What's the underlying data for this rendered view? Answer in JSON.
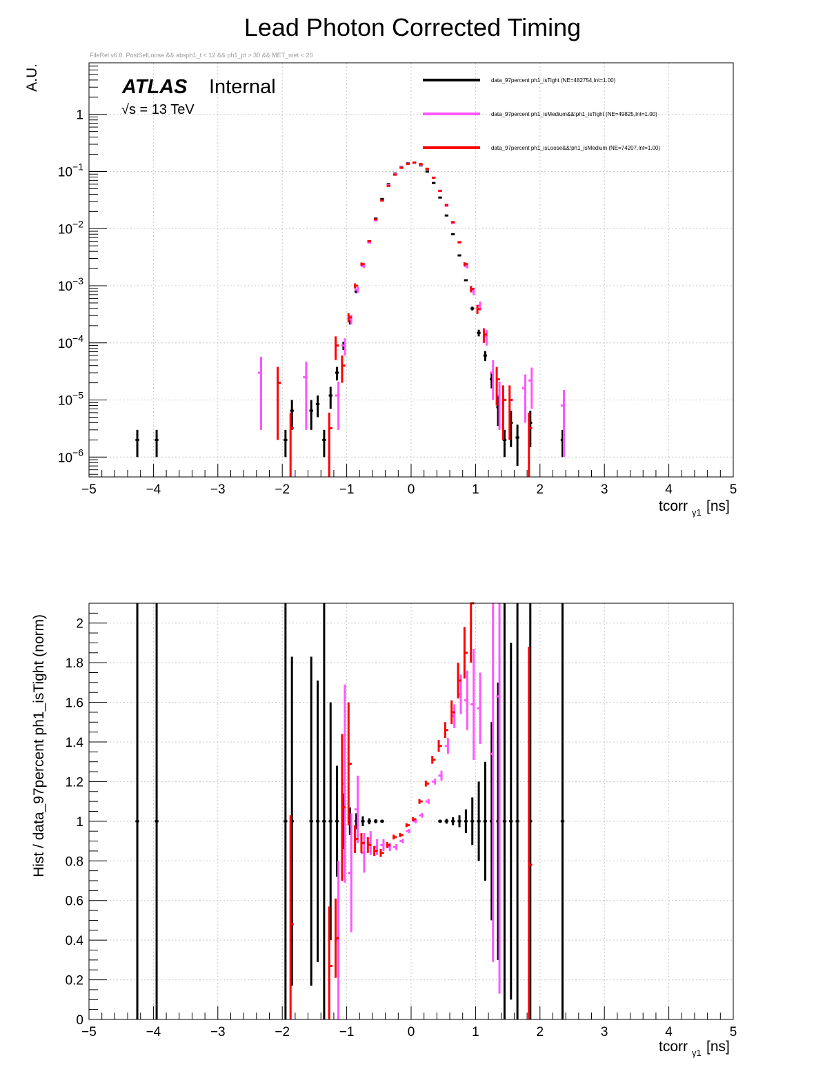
{
  "chart_data": [
    {
      "type": "scatter",
      "title": "Lead Photon Corrected Timing",
      "subtitle": "FileRel v6.0. PostSelLoose &&  absph1_t < 12 && ph1_pt > 30 && MET_met < 20",
      "atlas_label": "ATLAS",
      "atlas_status": "Internal",
      "energy_label": "√s = 13 TeV",
      "xlabel_main": "tcorr",
      "xlabel_sub": "γ1",
      "xlabel_unit": "[ns]",
      "ylabel": "A.U.",
      "yscale": "log",
      "xlim": [
        -5,
        5
      ],
      "ylim": [
        4.5e-07,
        8
      ],
      "grid": true,
      "legend_position": "top-right",
      "xticks": [
        "−5",
        "−4",
        "−3",
        "−2",
        "−1",
        "0",
        "1",
        "2",
        "3",
        "4",
        "5"
      ],
      "yticks": [
        {
          "value": 1,
          "base": "1",
          "exp": ""
        },
        {
          "value": 0.1,
          "base": "10",
          "exp": "−1"
        },
        {
          "value": 0.01,
          "base": "10",
          "exp": "−2"
        },
        {
          "value": 0.001,
          "base": "10",
          "exp": "−3"
        },
        {
          "value": 0.0001,
          "base": "10",
          "exp": "−4"
        },
        {
          "value": 1e-05,
          "base": "10",
          "exp": "−5"
        },
        {
          "value": 1e-06,
          "base": "10",
          "exp": "−6"
        }
      ],
      "series": [
        {
          "name": "data_97percent  ph1_isTight (NE=482754,Int=1.00)",
          "color": "#000000",
          "points": [
            [
              -4.25,
              2e-06,
              1e-06
            ],
            [
              -3.95,
              2e-06,
              1e-06
            ],
            [
              -1.95,
              2e-06,
              1e-06
            ],
            [
              -1.85,
              6.5e-06,
              3.5e-06
            ],
            [
              -1.55,
              6.5e-06,
              3.5e-06
            ],
            [
              -1.45,
              8.5e-06,
              3.5e-06
            ],
            [
              -1.35,
              2e-06,
              1e-06
            ],
            [
              -1.25,
              1.2e-05,
              5e-06
            ],
            [
              -1.15,
              3e-05,
              8e-06
            ],
            [
              -1.05,
              9e-05,
              1.5e-05
            ],
            [
              -0.95,
              0.00024,
              3e-05
            ],
            [
              -0.85,
              0.0008,
              6e-05
            ],
            [
              -0.75,
              0.0023,
              0.0001
            ],
            [
              -0.65,
              0.006,
              0.0002
            ],
            [
              -0.55,
              0.015,
              0.0003
            ],
            [
              -0.45,
              0.033,
              0.0005
            ],
            [
              -0.35,
              0.06,
              0.0006
            ],
            [
              -0.25,
              0.092,
              0.0008
            ],
            [
              -0.15,
              0.12,
              0.0009
            ],
            [
              -0.05,
              0.14,
              0.001
            ],
            [
              0.05,
              0.142,
              0.001
            ],
            [
              0.15,
              0.128,
              0.0009
            ],
            [
              0.25,
              0.1,
              0.0008
            ],
            [
              0.35,
              0.063,
              0.0006
            ],
            [
              0.45,
              0.035,
              0.0005
            ],
            [
              0.55,
              0.017,
              0.0003
            ],
            [
              0.65,
              0.008,
              0.0002
            ],
            [
              0.75,
              0.0034,
              0.0001
            ],
            [
              0.85,
              0.00125,
              6e-05
            ],
            [
              0.95,
              0.0004,
              3e-05
            ],
            [
              1.05,
              0.00015,
              2e-05
            ],
            [
              1.15,
              6e-05,
              1.2e-05
            ],
            [
              1.25,
              2.3e-05,
              7e-06
            ],
            [
              1.35,
              7.5e-06,
              4e-06
            ],
            [
              1.45,
              2e-06,
              1e-06
            ],
            [
              1.55,
              4e-06,
              2.5e-06
            ],
            [
              1.65,
              2.2e-06,
              1.5e-06
            ],
            [
              1.85,
              4e-06,
              2.5e-06
            ],
            [
              2.35,
              2e-06,
              1e-06
            ]
          ]
        },
        {
          "name": "data_97percent  ph1_isMedium&&!ph1_isTight (NE=49825,Int=1.00)",
          "color": "#ff55ff",
          "points": [
            [
              -2.35,
              3e-05,
              2.7e-05
            ],
            [
              -1.65,
              2.5e-05,
              2.2e-05
            ],
            [
              -1.15,
              1.2e-05,
              9e-06
            ],
            [
              -1.05,
              9e-05,
              3e-05
            ],
            [
              -0.95,
              0.00026,
              5e-05
            ],
            [
              -0.85,
              0.00085,
              0.0001
            ],
            [
              -0.75,
              0.0022,
              0.00015
            ],
            [
              -0.65,
              0.0057,
              0.0003
            ],
            [
              -0.55,
              0.014,
              0.0005
            ],
            [
              -0.45,
              0.031,
              0.0008
            ],
            [
              -0.35,
              0.058,
              0.001
            ],
            [
              -0.25,
              0.09,
              0.0013
            ],
            [
              -0.15,
              0.118,
              0.0015
            ],
            [
              -0.05,
              0.138,
              0.0016
            ],
            [
              0.05,
              0.143,
              0.0016
            ],
            [
              0.15,
              0.132,
              0.0015
            ],
            [
              0.25,
              0.11,
              0.0014
            ],
            [
              0.35,
              0.078,
              0.0012
            ],
            [
              0.45,
              0.046,
              0.0009
            ],
            [
              0.55,
              0.025,
              0.0007
            ],
            [
              0.65,
              0.0125,
              0.0005
            ],
            [
              0.75,
              0.0057,
              0.0003
            ],
            [
              0.85,
              0.0022,
              0.0002
            ],
            [
              0.95,
              0.0008,
              0.00012
            ],
            [
              1.05,
              0.00045,
              8e-05
            ],
            [
              1.15,
              0.00013,
              4e-05
            ],
            [
              1.25,
              3e-05,
              2e-05
            ],
            [
              1.35,
              1.2e-05,
              9e-06
            ],
            [
              1.75,
              1.6e-05,
              1.2e-05
            ],
            [
              1.85,
              2.2e-05,
              1.5e-05
            ],
            [
              2.35,
              8e-06,
              7e-06
            ]
          ]
        },
        {
          "name": "data_97percent  ph1_isLoose&&!ph1_isMedium (NE=74207,Int=1.00)",
          "color": "#ff0000",
          "points": [
            [
              -2.05,
              2e-05,
              1.8e-05
            ],
            [
              -1.85,
              3.2e-06,
              2.8e-06
            ],
            [
              -1.25,
              3.2e-06,
              2.8e-06
            ],
            [
              -1.15,
              9e-05,
              4e-05
            ],
            [
              -1.05,
              4e-05,
              2e-05
            ],
            [
              -0.95,
              0.00028,
              5e-05
            ],
            [
              -0.85,
              0.001,
              0.0001
            ],
            [
              -0.75,
              0.0024,
              0.00015
            ],
            [
              -0.65,
              0.006,
              0.00025
            ],
            [
              -0.55,
              0.0145,
              0.0004
            ],
            [
              -0.45,
              0.031,
              0.0006
            ],
            [
              -0.35,
              0.056,
              0.0008
            ],
            [
              -0.25,
              0.088,
              0.001
            ],
            [
              -0.15,
              0.116,
              0.0012
            ],
            [
              -0.05,
              0.136,
              0.0013
            ],
            [
              0.05,
              0.144,
              0.0014
            ],
            [
              0.15,
              0.135,
              0.0013
            ],
            [
              0.25,
              0.112,
              0.0012
            ],
            [
              0.35,
              0.078,
              0.001
            ],
            [
              0.45,
              0.046,
              0.0008
            ],
            [
              0.55,
              0.026,
              0.0006
            ],
            [
              0.65,
              0.013,
              0.0004
            ],
            [
              0.75,
              0.0058,
              0.0003
            ],
            [
              0.85,
              0.0024,
              0.00018
            ],
            [
              0.95,
              0.00088,
              0.00011
            ],
            [
              1.05,
              0.00039,
              7e-05
            ],
            [
              1.15,
              0.00014,
              4e-05
            ],
            [
              1.35,
              2.3e-05,
              1.5e-05
            ],
            [
              1.45,
              1e-05,
              8e-06
            ],
            [
              1.55,
              1e-05,
              8e-06
            ],
            [
              1.85,
              3.2e-06,
              2.8e-06
            ]
          ]
        }
      ]
    },
    {
      "type": "scatter",
      "ylabel": "Hist / data_97percent  ph1_isTight (norm)",
      "xlabel_main": "tcorr",
      "xlabel_sub": "γ1",
      "xlabel_unit": "[ns]",
      "xlim": [
        -5,
        5
      ],
      "ylim": [
        0,
        2.1
      ],
      "grid": true,
      "xticks": [
        "−5",
        "−4",
        "−3",
        "−2",
        "−1",
        "0",
        "1",
        "2",
        "3",
        "4",
        "5"
      ],
      "yticks": [
        "0",
        "0.2",
        "0.4",
        "0.6",
        "0.8",
        "1",
        "1.2",
        "1.4",
        "1.6",
        "1.8",
        "2"
      ],
      "series": [
        {
          "name": "data_97percent  ph1_isTight",
          "color": "#000000",
          "points": [
            [
              -4.25,
              1,
              1.5
            ],
            [
              -3.95,
              1,
              1.5
            ],
            [
              -1.95,
              1,
              1.5
            ],
            [
              -1.85,
              1,
              0.83
            ],
            [
              -1.55,
              1,
              0.83
            ],
            [
              -1.45,
              1,
              0.71
            ],
            [
              -1.35,
              1,
              1.5
            ],
            [
              -1.25,
              1,
              0.6
            ],
            [
              -1.15,
              1,
              0.28
            ],
            [
              -1.05,
              1,
              0.14
            ],
            [
              -0.95,
              1,
              0.07
            ],
            [
              -0.85,
              1,
              0.04
            ],
            [
              -0.75,
              1,
              0.025
            ],
            [
              -0.65,
              1,
              0.015
            ],
            [
              -0.55,
              1,
              0.01
            ],
            [
              -0.45,
              1,
              0.008
            ],
            [
              0.45,
              1,
              0.008
            ],
            [
              0.55,
              1,
              0.012
            ],
            [
              0.65,
              1,
              0.02
            ],
            [
              0.75,
              1,
              0.03
            ],
            [
              0.85,
              1,
              0.06
            ],
            [
              0.95,
              1,
              0.12
            ],
            [
              1.05,
              1,
              0.2
            ],
            [
              1.15,
              1,
              0.3
            ],
            [
              1.25,
              1,
              0.5
            ],
            [
              1.35,
              1,
              0.7
            ],
            [
              1.45,
              1,
              1.5
            ],
            [
              1.55,
              1,
              0.9
            ],
            [
              1.65,
              1,
              1.2
            ],
            [
              1.85,
              1,
              1.5
            ],
            [
              2.35,
              1,
              1.5
            ]
          ]
        },
        {
          "name": "data_97percent  ph1_isMedium&&!ph1_isTight",
          "color": "#ff55ff",
          "points": [
            [
              -1.15,
              0.4,
              0.4
            ],
            [
              -1.05,
              1.19,
              0.5
            ],
            [
              -0.95,
              0.74,
              0.3
            ],
            [
              -0.85,
              1.06,
              0.17
            ],
            [
              -0.75,
              0.84,
              0.1
            ],
            [
              -0.65,
              0.89,
              0.06
            ],
            [
              -0.55,
              0.87,
              0.04
            ],
            [
              -0.45,
              0.88,
              0.03
            ],
            [
              -0.35,
              0.87,
              0.02
            ],
            [
              -0.25,
              0.87,
              0.015
            ],
            [
              -0.15,
              0.9,
              0.012
            ],
            [
              -0.05,
              0.95,
              0.011
            ],
            [
              0.05,
              1.0,
              0.011
            ],
            [
              0.15,
              1.03,
              0.012
            ],
            [
              0.25,
              1.1,
              0.013
            ],
            [
              0.35,
              1.2,
              0.015
            ],
            [
              0.45,
              1.23,
              0.025
            ],
            [
              0.55,
              1.38,
              0.04
            ],
            [
              0.65,
              1.53,
              0.06
            ],
            [
              0.75,
              1.64,
              0.1
            ],
            [
              0.85,
              1.61,
              0.15
            ],
            [
              0.95,
              1.59,
              0.28
            ],
            [
              1.05,
              1.57,
              0.18
            ],
            [
              1.25,
              1.34,
              1.05
            ],
            [
              1.35,
              1.63,
              1.5
            ]
          ]
        },
        {
          "name": "data_97percent  ph1_isLoose&&!ph1_isMedium",
          "color": "#ff0000",
          "points": [
            [
              -1.85,
              0.48,
              0.55
            ],
            [
              -1.25,
              0.27,
              0.3
            ],
            [
              -1.15,
              0.41,
              0.2
            ],
            [
              -1.05,
              1.07,
              0.37
            ],
            [
              -0.95,
              1.29,
              0.31
            ],
            [
              -0.85,
              0.91,
              0.07
            ],
            [
              -0.75,
              0.89,
              0.05
            ],
            [
              -0.65,
              0.88,
              0.04
            ],
            [
              -0.55,
              0.85,
              0.025
            ],
            [
              -0.45,
              0.84,
              0.02
            ],
            [
              -0.35,
              0.88,
              0.015
            ],
            [
              -0.25,
              0.92,
              0.012
            ],
            [
              -0.15,
              0.93,
              0.01
            ],
            [
              -0.05,
              0.98,
              0.01
            ],
            [
              0.05,
              1.01,
              0.01
            ],
            [
              0.15,
              1.1,
              0.012
            ],
            [
              0.25,
              1.19,
              0.015
            ],
            [
              0.35,
              1.31,
              0.02
            ],
            [
              0.45,
              1.38,
              0.03
            ],
            [
              0.55,
              1.46,
              0.04
            ],
            [
              0.65,
              1.55,
              0.06
            ],
            [
              0.75,
              1.71,
              0.09
            ],
            [
              0.85,
              1.85,
              0.13
            ],
            [
              0.95,
              2.1,
              0.3
            ],
            [
              1.85,
              0.78,
              1.1
            ]
          ]
        }
      ]
    }
  ]
}
